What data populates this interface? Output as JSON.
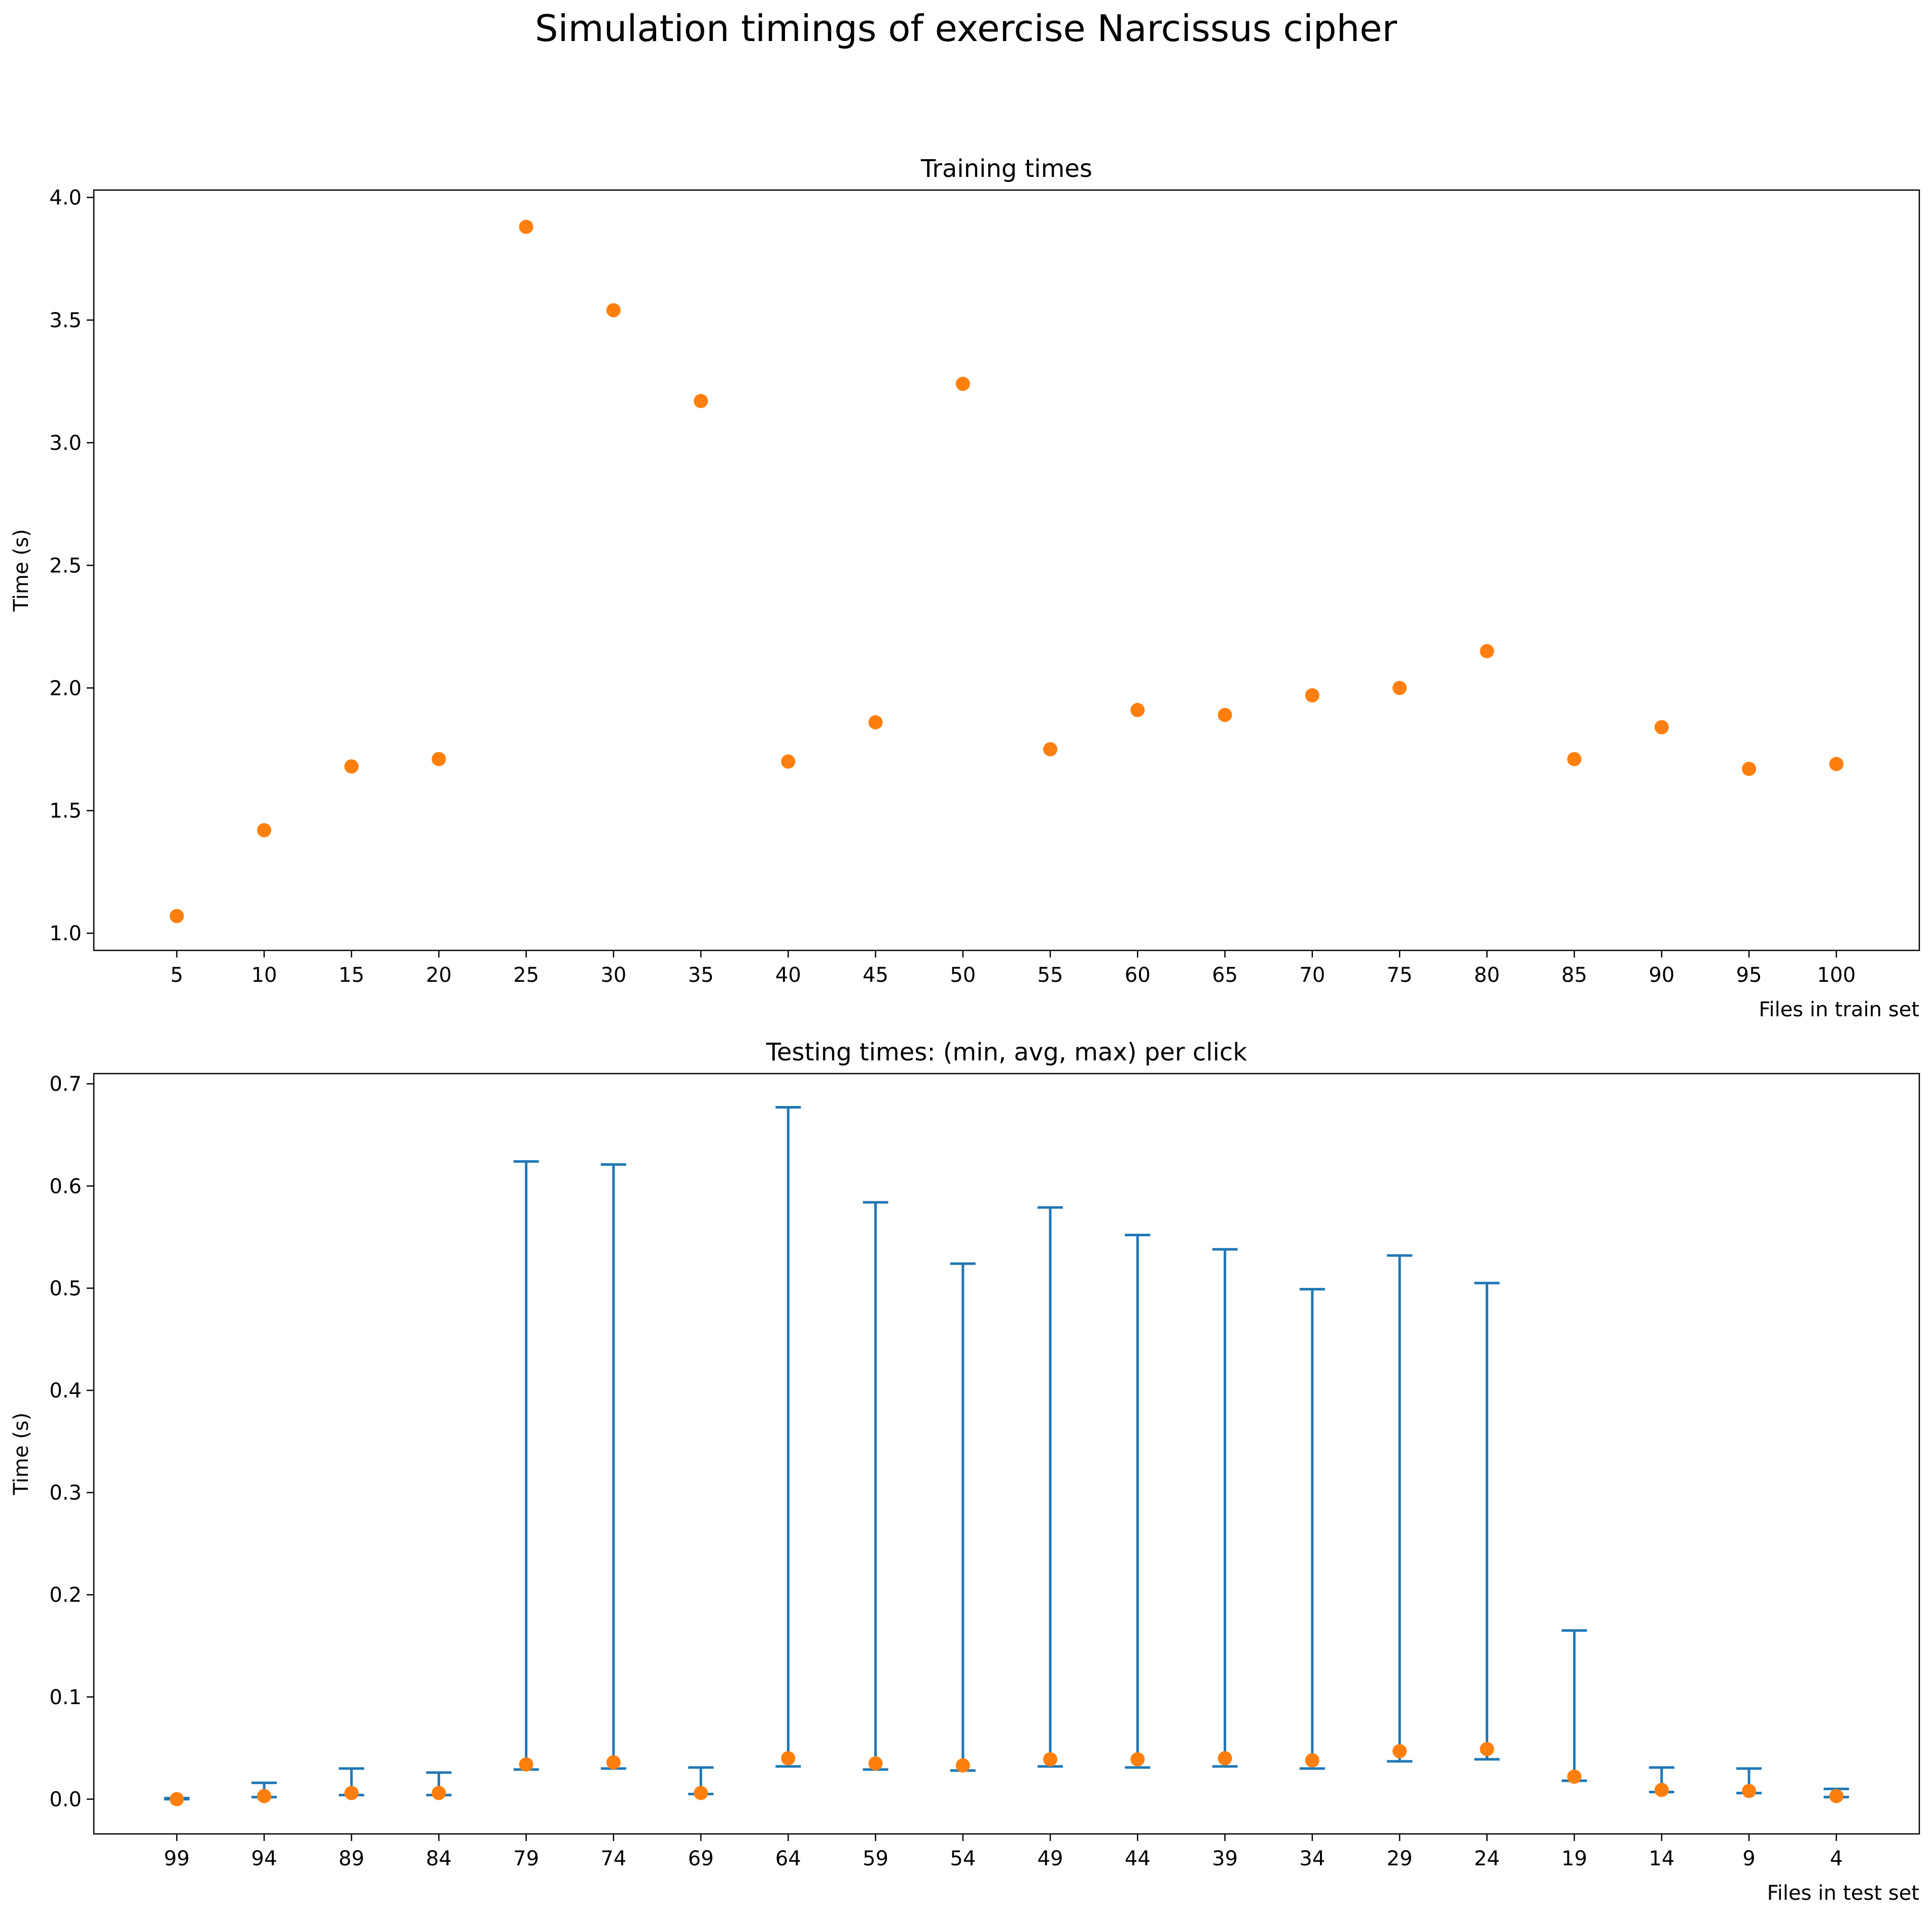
{
  "figure": {
    "suptitle": "Simulation timings of exercise Narcissus cipher",
    "colors": {
      "markers": "#ff7f0e",
      "errorbars": "#1f77b4",
      "axes": "#000000"
    }
  },
  "chart_data": [
    {
      "type": "scatter",
      "title": "Training times",
      "xlabel": "Files in train set",
      "ylabel": "Time (s)",
      "categories": [
        "5",
        "10",
        "15",
        "20",
        "25",
        "30",
        "35",
        "40",
        "45",
        "50",
        "55",
        "60",
        "65",
        "70",
        "75",
        "80",
        "85",
        "90",
        "95",
        "100"
      ],
      "values": [
        1.07,
        1.42,
        1.68,
        1.71,
        3.88,
        3.54,
        3.17,
        1.7,
        1.86,
        3.24,
        1.75,
        1.91,
        1.89,
        1.97,
        2.0,
        2.15,
        1.71,
        1.84,
        1.67,
        1.69
      ],
      "ylim": [
        0.93,
        4.03
      ],
      "yticks": [
        1.0,
        1.5,
        2.0,
        2.5,
        3.0,
        3.5,
        4.0
      ],
      "yticklabels": [
        "1.0",
        "1.5",
        "2.0",
        "2.5",
        "3.0",
        "3.5",
        "4.0"
      ],
      "grid": false,
      "marker_color": "#ff7f0e"
    },
    {
      "type": "scatter",
      "title": "Testing times: (min, avg, max) per click",
      "xlabel": "Files in test set",
      "ylabel": "Time (s)",
      "categories": [
        "99",
        "94",
        "89",
        "84",
        "79",
        "74",
        "69",
        "64",
        "59",
        "54",
        "49",
        "44",
        "39",
        "34",
        "29",
        "24",
        "19",
        "14",
        "9",
        "4"
      ],
      "series": [
        {
          "name": "min",
          "values": [
            0.0,
            0.002,
            0.004,
            0.004,
            0.029,
            0.03,
            0.005,
            0.032,
            0.029,
            0.028,
            0.032,
            0.031,
            0.032,
            0.03,
            0.037,
            0.039,
            0.018,
            0.007,
            0.006,
            0.002
          ]
        },
        {
          "name": "avg",
          "values": [
            0.0,
            0.003,
            0.006,
            0.006,
            0.034,
            0.036,
            0.006,
            0.04,
            0.035,
            0.033,
            0.039,
            0.039,
            0.04,
            0.038,
            0.047,
            0.049,
            0.022,
            0.009,
            0.008,
            0.003
          ]
        },
        {
          "name": "max",
          "values": [
            0.001,
            0.016,
            0.03,
            0.026,
            0.624,
            0.621,
            0.031,
            0.677,
            0.584,
            0.524,
            0.579,
            0.552,
            0.538,
            0.499,
            0.532,
            0.505,
            0.165,
            0.031,
            0.03,
            0.01
          ]
        }
      ],
      "ylim": [
        -0.034,
        0.71
      ],
      "yticks": [
        0.0,
        0.1,
        0.2,
        0.3,
        0.4,
        0.5,
        0.6,
        0.7
      ],
      "yticklabels": [
        "0.0",
        "0.1",
        "0.2",
        "0.3",
        "0.4",
        "0.5",
        "0.6",
        "0.7"
      ],
      "grid": false,
      "marker_color": "#ff7f0e",
      "errorbar_color": "#1f77b4"
    }
  ]
}
